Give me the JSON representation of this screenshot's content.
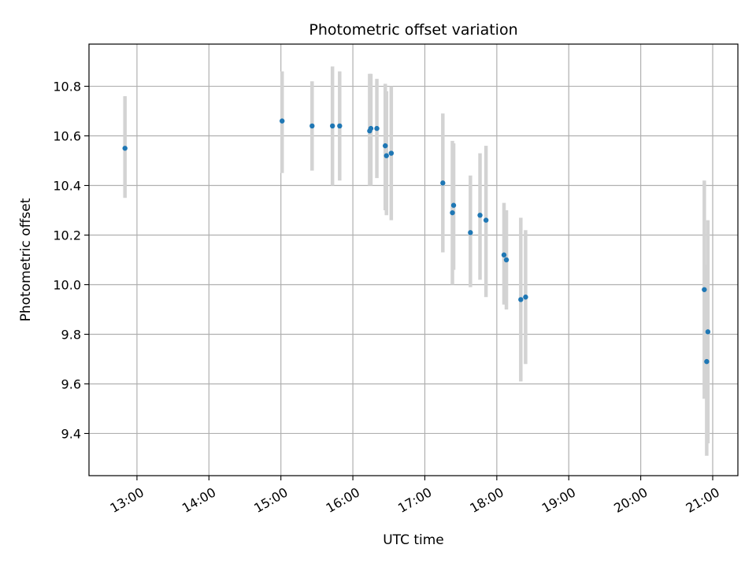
{
  "chart_data": {
    "type": "scatter",
    "title": "Photometric offset variation",
    "xlabel": "UTC time",
    "ylabel": "Photometric offset",
    "x_tick_labels": [
      "13:00",
      "14:00",
      "15:00",
      "16:00",
      "17:00",
      "18:00",
      "19:00",
      "20:00",
      "21:00"
    ],
    "y_tick_labels": [
      "9.4",
      "9.6",
      "9.8",
      "10.0",
      "10.2",
      "10.4",
      "10.6",
      "10.8"
    ],
    "xlim": [
      "12:20",
      "21:21"
    ],
    "ylim": [
      9.23,
      10.97
    ],
    "grid": true,
    "colors": {
      "points": "#1f77b4",
      "error_bars": "#d3d3d3",
      "grid": "#b0b0b0"
    },
    "series": [
      {
        "points": [
          {
            "x": "12:50",
            "y": 10.55,
            "ylow": 10.35,
            "yhigh": 10.76
          },
          {
            "x": "15:01",
            "y": 10.66,
            "ylow": 10.45,
            "yhigh": 10.86
          },
          {
            "x": "15:26",
            "y": 10.64,
            "ylow": 10.46,
            "yhigh": 10.82
          },
          {
            "x": "15:43",
            "y": 10.64,
            "ylow": 10.4,
            "yhigh": 10.88
          },
          {
            "x": "15:49",
            "y": 10.64,
            "ylow": 10.42,
            "yhigh": 10.86
          },
          {
            "x": "16:14",
            "y": 10.62,
            "ylow": 10.4,
            "yhigh": 10.85
          },
          {
            "x": "16:15",
            "y": 10.63,
            "ylow": 10.4,
            "yhigh": 10.85
          },
          {
            "x": "16:20",
            "y": 10.63,
            "ylow": 10.43,
            "yhigh": 10.83
          },
          {
            "x": "16:27",
            "y": 10.56,
            "ylow": 10.3,
            "yhigh": 10.81
          },
          {
            "x": "16:28",
            "y": 10.52,
            "ylow": 10.28,
            "yhigh": 10.78
          },
          {
            "x": "16:32",
            "y": 10.53,
            "ylow": 10.26,
            "yhigh": 10.8
          },
          {
            "x": "17:15",
            "y": 10.41,
            "ylow": 10.13,
            "yhigh": 10.69
          },
          {
            "x": "17:23",
            "y": 10.29,
            "ylow": 10.0,
            "yhigh": 10.58
          },
          {
            "x": "17:24",
            "y": 10.32,
            "ylow": 10.06,
            "yhigh": 10.57
          },
          {
            "x": "17:38",
            "y": 10.21,
            "ylow": 9.99,
            "yhigh": 10.44
          },
          {
            "x": "17:46",
            "y": 10.28,
            "ylow": 10.02,
            "yhigh": 10.53
          },
          {
            "x": "17:51",
            "y": 10.26,
            "ylow": 9.95,
            "yhigh": 10.56
          },
          {
            "x": "18:06",
            "y": 10.12,
            "ylow": 9.92,
            "yhigh": 10.33
          },
          {
            "x": "18:08",
            "y": 10.1,
            "ylow": 9.9,
            "yhigh": 10.3
          },
          {
            "x": "18:20",
            "y": 9.94,
            "ylow": 9.61,
            "yhigh": 10.27
          },
          {
            "x": "18:24",
            "y": 9.95,
            "ylow": 9.68,
            "yhigh": 10.22
          },
          {
            "x": "20:53",
            "y": 9.98,
            "ylow": 9.54,
            "yhigh": 10.42
          },
          {
            "x": "20:55",
            "y": 9.69,
            "ylow": 9.31,
            "yhigh": 10.08
          },
          {
            "x": "20:56",
            "y": 9.81,
            "ylow": 9.36,
            "yhigh": 10.26
          }
        ]
      }
    ]
  }
}
